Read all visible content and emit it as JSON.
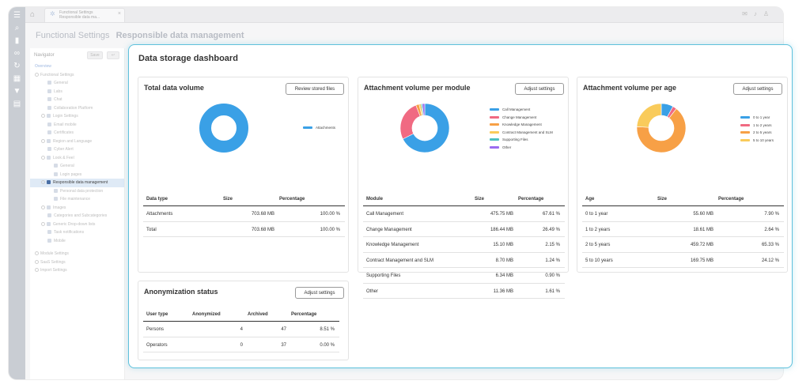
{
  "topbar": {
    "tab_line1": "Functional Settings",
    "tab_line2": "Responsible data ma...",
    "tab_close": "×",
    "home_icon": "home-icon",
    "icons": [
      "mail-icon",
      "bell-icon",
      "user-icon"
    ]
  },
  "heading": {
    "title": "Functional Settings",
    "subtitle": "Responsible data management"
  },
  "navigator": {
    "label": "Navigator",
    "btn1": "Save",
    "btn2": "↩",
    "items": [
      {
        "label": "Overview",
        "indent": 0,
        "type": "overview"
      },
      {
        "label": "Functional Settings",
        "indent": 0,
        "type": "group"
      },
      {
        "label": "General",
        "indent": 2,
        "type": "leaf"
      },
      {
        "label": "Labs",
        "indent": 2,
        "type": "leaf"
      },
      {
        "label": "Chat",
        "indent": 2,
        "type": "leaf"
      },
      {
        "label": "Collaboration Platform",
        "indent": 2,
        "type": "leaf"
      },
      {
        "label": "Login Settings",
        "indent": 1,
        "type": "group"
      },
      {
        "label": "Email mobile",
        "indent": 2,
        "type": "leaf"
      },
      {
        "label": "Certificates",
        "indent": 2,
        "type": "leaf"
      },
      {
        "label": "Region and Language",
        "indent": 1,
        "type": "group"
      },
      {
        "label": "Cyber Alert",
        "indent": 2,
        "type": "leaf"
      },
      {
        "label": "Look & Feel",
        "indent": 1,
        "type": "group"
      },
      {
        "label": "General",
        "indent": 3,
        "type": "leaf"
      },
      {
        "label": "Login pages",
        "indent": 3,
        "type": "leaf"
      },
      {
        "label": "Responsible data management",
        "indent": 1,
        "type": "active"
      },
      {
        "label": "Personal data protection",
        "indent": 3,
        "type": "leaf"
      },
      {
        "label": "File maintenance",
        "indent": 3,
        "type": "leaf"
      },
      {
        "label": "Images",
        "indent": 1,
        "type": "group"
      },
      {
        "label": "Categories and Subcategories",
        "indent": 2,
        "type": "leaf"
      },
      {
        "label": "Generic Drop-down lists",
        "indent": 1,
        "type": "group"
      },
      {
        "label": "Task notifications",
        "indent": 2,
        "type": "leaf"
      },
      {
        "label": "Mobile",
        "indent": 2,
        "type": "leaf"
      },
      {
        "label": "",
        "indent": 0,
        "type": "spacer"
      },
      {
        "label": "Module Settings",
        "indent": 0,
        "type": "group"
      },
      {
        "label": "SaaS Settings",
        "indent": 0,
        "type": "group"
      },
      {
        "label": "Import Settings",
        "indent": 0,
        "type": "group"
      }
    ]
  },
  "dashboard": {
    "title": "Data storage dashboard",
    "total": {
      "title": "Total data volume",
      "button": "Review stored files",
      "legend": [
        {
          "label": "Attachments",
          "color": "#3aa0e6"
        }
      ],
      "slices": [
        {
          "value": 100,
          "color": "#3aa0e6"
        }
      ],
      "columns": [
        "Data type",
        "Size",
        "Percentage"
      ],
      "rows": [
        [
          "Attachments",
          "703.68 MB",
          "100.00 %"
        ],
        [
          "Total",
          "703.68 MB",
          "100.00 %"
        ]
      ]
    },
    "module": {
      "title": "Attachment volume per module",
      "button": "Adjust settings",
      "legend": [
        {
          "label": "Call Management",
          "color": "#3aa0e6"
        },
        {
          "label": "Change Management",
          "color": "#f06a82"
        },
        {
          "label": "Knowledge Management",
          "color": "#f7a046"
        },
        {
          "label": "Contract Management and SLM",
          "color": "#f9cb5b"
        },
        {
          "label": "Supporting Files",
          "color": "#4cc0c0"
        },
        {
          "label": "Other",
          "color": "#9a6cf0"
        }
      ],
      "slices": [
        {
          "value": 67.61,
          "color": "#3aa0e6"
        },
        {
          "value": 26.49,
          "color": "#f06a82"
        },
        {
          "value": 2.15,
          "color": "#f7a046"
        },
        {
          "value": 1.24,
          "color": "#f9cb5b"
        },
        {
          "value": 0.9,
          "color": "#4cc0c0"
        },
        {
          "value": 1.61,
          "color": "#9a6cf0"
        }
      ],
      "columns": [
        "Module",
        "Size",
        "Percentage"
      ],
      "rows": [
        [
          "Call Management",
          "475.75 MB",
          "67.61 %"
        ],
        [
          "Change Management",
          "186.44 MB",
          "26.49 %"
        ],
        [
          "Knowledge Management",
          "15.10 MB",
          "2.15 %"
        ],
        [
          "Contract Management and SLM",
          "8.70 MB",
          "1.24 %"
        ],
        [
          "Supporting Files",
          "6.34 MB",
          "0.90 %"
        ],
        [
          "Other",
          "11.36 MB",
          "1.61 %"
        ]
      ]
    },
    "age": {
      "title": "Attachment volume per age",
      "button": "Adjust settings",
      "legend": [
        {
          "label": "0 to 1 year",
          "color": "#3aa0e6"
        },
        {
          "label": "1 to 2 years",
          "color": "#f06a82"
        },
        {
          "label": "2 to 5 years",
          "color": "#f7a046"
        },
        {
          "label": "5 to 10 years",
          "color": "#f9cb5b"
        }
      ],
      "slices": [
        {
          "value": 7.9,
          "color": "#3aa0e6"
        },
        {
          "value": 2.64,
          "color": "#f06a82"
        },
        {
          "value": 65.33,
          "color": "#f7a046"
        },
        {
          "value": 24.12,
          "color": "#f9cb5b"
        }
      ],
      "columns": [
        "Age",
        "Size",
        "Percentage"
      ],
      "rows": [
        [
          "0 to 1 year",
          "55.60 MB",
          "7.90 %"
        ],
        [
          "1 to 2 years",
          "18.61 MB",
          "2.64 %"
        ],
        [
          "2 to 5 years",
          "459.72 MB",
          "65.33 %"
        ],
        [
          "5 to 10 years",
          "169.75 MB",
          "24.12 %"
        ]
      ]
    },
    "anon": {
      "title": "Anonymization status",
      "button": "Adjust settings",
      "columns": [
        "User type",
        "Anonymized",
        "Archived",
        "Percentage"
      ],
      "rows": [
        [
          "Persons",
          "4",
          "47",
          "8.51 %"
        ],
        [
          "Operators",
          "0",
          "37",
          "0.00 %"
        ]
      ]
    }
  }
}
